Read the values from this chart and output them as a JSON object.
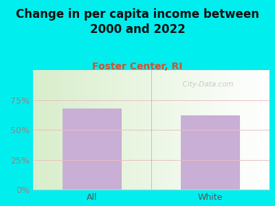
{
  "title": "Change in per capita income between\n2000 and 2022",
  "subtitle": "Foster Center, RI",
  "categories": [
    "All",
    "White"
  ],
  "values": [
    68,
    62
  ],
  "bar_color": "#c9aed6",
  "title_fontsize": 12,
  "subtitle_fontsize": 10,
  "subtitle_color": "#cc5533",
  "title_color": "#111111",
  "background_color": "#00eeee",
  "plot_bg_left": "#d8eecb",
  "plot_bg_right": "#ffffff",
  "ylim": [
    0,
    100
  ],
  "yticks": [
    0,
    25,
    50,
    75
  ],
  "yticklabels": [
    "0%",
    "25%",
    "50%",
    "75%"
  ],
  "grid_color": "#e8c0c0",
  "bar_width": 0.5,
  "watermark": "  City-Data.com"
}
